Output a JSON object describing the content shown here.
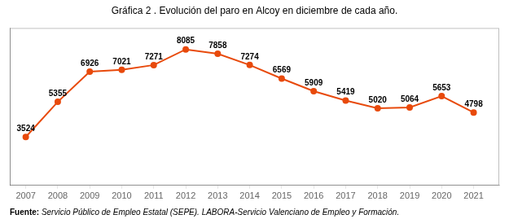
{
  "chart_data": {
    "type": "line",
    "title": "Gráfica 2 . Evolución del paro en Alcoy en diciembre de cada año.",
    "x": [
      2007,
      2008,
      2009,
      2010,
      2011,
      2012,
      2013,
      2014,
      2015,
      2016,
      2017,
      2018,
      2019,
      2020,
      2021
    ],
    "values": [
      3524,
      5355,
      6926,
      7021,
      7271,
      8085,
      7858,
      7274,
      6569,
      5909,
      5419,
      5020,
      5064,
      5653,
      4798
    ],
    "color": "#E84A0C",
    "marker": "circle",
    "xlim": [
      2006.5,
      2021.8
    ],
    "xticks": [
      2007,
      2008,
      2009,
      2010,
      2011,
      2012,
      2013,
      2014,
      2015,
      2016,
      2017,
      2018,
      2019,
      2020,
      2021
    ],
    "ylim": [
      1000,
      9200
    ],
    "grid": false,
    "tick_labels": "x",
    "data_labels": true,
    "annotations": [
      "Fuente:",
      "Servicio Público de Empleo Estatal (SEPE). LABORA-Servicio Valenciano de Empleo y Formación."
    ]
  }
}
